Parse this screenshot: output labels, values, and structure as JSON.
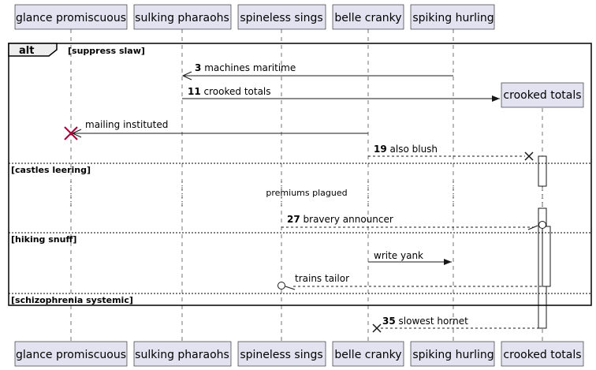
{
  "participants": [
    "glance promiscuous",
    "sulking pharaohs",
    "spineless sings",
    "belle cranky",
    "spiking hurling",
    "crooked totals"
  ],
  "alt_frame": {
    "tag": "alt",
    "guards": [
      "[suppress slaw]",
      "[castles leering]",
      "[hiking snuff]",
      "[schizophrenia systemic]"
    ]
  },
  "messages": [
    {
      "num": "3",
      "text": "machines maritime"
    },
    {
      "num": "11",
      "text": "crooked totals"
    },
    {
      "num": "",
      "text": "mailing instituted"
    },
    {
      "num": "19",
      "text": "also blush"
    },
    {
      "num": "27",
      "text": "bravery announcer"
    },
    {
      "num": "",
      "text": "write yank"
    },
    {
      "num": "",
      "text": "trains tailor"
    },
    {
      "num": "35",
      "text": "slowest hornet"
    }
  ],
  "created_participant": "crooked totals",
  "delay_text": "premiums plagued"
}
